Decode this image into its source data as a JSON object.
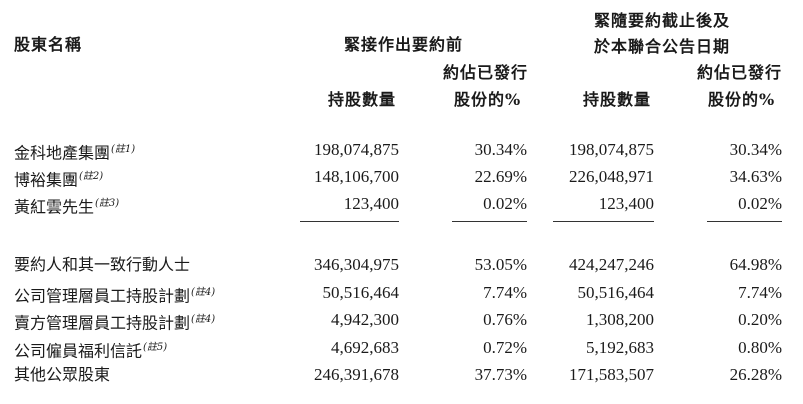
{
  "headers": {
    "shareholder": "股東名稱",
    "group1_title": "緊接作出要約前",
    "group2_title_line1": "緊隨要約截止後及",
    "group2_title_line2": "於本聯合公告日期",
    "shares_label": "持股數量",
    "pct_label_line1": "約佔已發行",
    "pct_label_line2": "股份的%"
  },
  "group_a": [
    {
      "name": "金科地產集團",
      "note": "(註1)",
      "shares_before": "198,074,875",
      "pct_before": "30.34%",
      "shares_after": "198,074,875",
      "pct_after": "30.34%"
    },
    {
      "name": "博裕集團",
      "note": "(註2)",
      "shares_before": "148,106,700",
      "pct_before": "22.69%",
      "shares_after": "226,048,971",
      "pct_after": "34.63%"
    },
    {
      "name": "黃紅雲先生",
      "note": "(註3)",
      "shares_before": "123,400",
      "pct_before": "0.02%",
      "shares_after": "123,400",
      "pct_after": "0.02%"
    }
  ],
  "group_b": [
    {
      "name": "要約人和其一致行動人士",
      "note": "",
      "shares_before": "346,304,975",
      "pct_before": "53.05%",
      "shares_after": "424,247,246",
      "pct_after": "64.98%"
    },
    {
      "name": "公司管理層員工持股計劃",
      "note": "(註4)",
      "shares_before": "50,516,464",
      "pct_before": "7.74%",
      "shares_after": "50,516,464",
      "pct_after": "7.74%"
    },
    {
      "name": "賣方管理層員工持股計劃",
      "note": "(註4)",
      "shares_before": "4,942,300",
      "pct_before": "0.76%",
      "shares_after": "1,308,200",
      "pct_after": "0.20%"
    },
    {
      "name": "公司僱員福利信託",
      "note": "(註5)",
      "shares_before": "4,692,683",
      "pct_before": "0.72%",
      "shares_after": "5,192,683",
      "pct_after": "0.80%"
    },
    {
      "name": "其他公眾股東",
      "note": "",
      "shares_before": "246,391,678",
      "pct_before": "37.73%",
      "shares_after": "171,583,507",
      "pct_after": "26.28%"
    }
  ]
}
